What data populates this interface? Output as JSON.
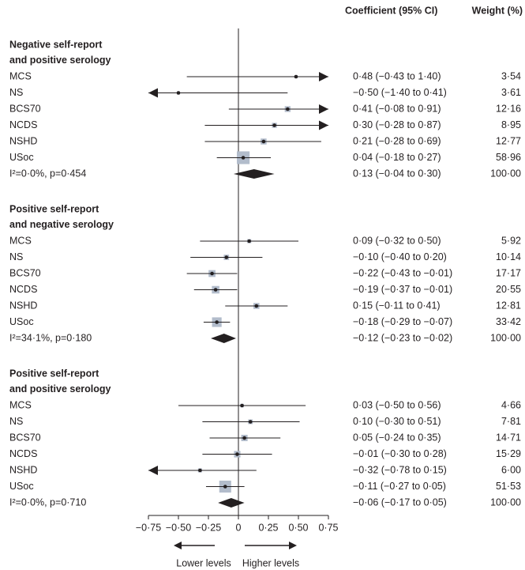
{
  "chart_data": {
    "type": "forest",
    "columns": [
      "Coefficient (95% CI)",
      "Weight (%)"
    ],
    "xlim": [
      -0.75,
      0.75
    ],
    "xticks": [
      {
        "value": -0.75,
        "label": "−0·75"
      },
      {
        "value": -0.5,
        "label": "−0·50"
      },
      {
        "value": -0.25,
        "label": "−0·25"
      },
      0,
      {
        "value": 0.25,
        "label": "0·25"
      },
      {
        "value": 0.5,
        "label": "0·50"
      },
      {
        "value": 0.75,
        "label": "0·75"
      }
    ],
    "direction_labels": [
      "Lower levels",
      "Higher levels"
    ],
    "box_color": "#b2bccb",
    "groups": [
      {
        "title": [
          "Negative self-report",
          "and positive serology"
        ],
        "rows": [
          {
            "label": "MCS",
            "estimate": 0.48,
            "lower": -0.43,
            "upper": 1.4,
            "ci_label": "0·48 (−0·43 to 1·40)",
            "weight": 3.54,
            "weight_label": "3·54"
          },
          {
            "label": "NS",
            "estimate": -0.5,
            "lower": -1.4,
            "upper": 0.41,
            "ci_label": "−0·50 (−1·40 to 0·41)",
            "weight": 3.61,
            "weight_label": "3·61"
          },
          {
            "label": "BCS70",
            "estimate": 0.41,
            "lower": -0.08,
            "upper": 0.91,
            "ci_label": "0·41 (−0·08 to 0·91)",
            "weight": 12.16,
            "weight_label": "12·16"
          },
          {
            "label": "NCDS",
            "estimate": 0.3,
            "lower": -0.28,
            "upper": 0.87,
            "ci_label": "0·30 (−0·28 to 0·87)",
            "weight": 8.95,
            "weight_label": "8·95"
          },
          {
            "label": "NSHD",
            "estimate": 0.21,
            "lower": -0.28,
            "upper": 0.69,
            "ci_label": "0·21 (−0·28 to 0·69)",
            "weight": 12.77,
            "weight_label": "12·77"
          },
          {
            "label": "USoc",
            "estimate": 0.04,
            "lower": -0.18,
            "upper": 0.27,
            "ci_label": "0·04 (−0·18 to 0·27)",
            "weight": 58.96,
            "weight_label": "58·96"
          }
        ],
        "summary": {
          "label": "I²=0·0%, p=0·454",
          "estimate": 0.13,
          "lower": -0.04,
          "upper": 0.3,
          "ci_label": "0·13 (−0·04 to 0·30)",
          "weight": 100,
          "weight_label": "100·00"
        }
      },
      {
        "title": [
          "Positive self-report",
          "and negative serology"
        ],
        "rows": [
          {
            "label": "MCS",
            "estimate": 0.09,
            "lower": -0.32,
            "upper": 0.5,
            "ci_label": "0·09 (−0·32 to 0·50)",
            "weight": 5.92,
            "weight_label": "5·92"
          },
          {
            "label": "NS",
            "estimate": -0.1,
            "lower": -0.4,
            "upper": 0.2,
            "ci_label": "−0·10 (−0·40 to 0·20)",
            "weight": 10.14,
            "weight_label": "10·14"
          },
          {
            "label": "BCS70",
            "estimate": -0.22,
            "lower": -0.43,
            "upper": -0.01,
            "ci_label": "−0·22 (−0·43 to −0·01)",
            "weight": 17.17,
            "weight_label": "17·17"
          },
          {
            "label": "NCDS",
            "estimate": -0.19,
            "lower": -0.37,
            "upper": -0.01,
            "ci_label": "−0·19 (−0·37 to −0·01)",
            "weight": 20.55,
            "weight_label": "20·55"
          },
          {
            "label": "NSHD",
            "estimate": 0.15,
            "lower": -0.11,
            "upper": 0.41,
            "ci_label": "0·15 (−0·11 to 0·41)",
            "weight": 12.81,
            "weight_label": "12·81"
          },
          {
            "label": "USoc",
            "estimate": -0.18,
            "lower": -0.29,
            "upper": -0.07,
            "ci_label": "−0·18 (−0·29 to −0·07)",
            "weight": 33.42,
            "weight_label": "33·42"
          }
        ],
        "summary": {
          "label": "I²=34·1%, p=0·180",
          "estimate": -0.12,
          "lower": -0.23,
          "upper": -0.02,
          "ci_label": "−0·12 (−0·23 to −0·02)",
          "weight": 100,
          "weight_label": "100·00"
        }
      },
      {
        "title": [
          "Positive self-report",
          "and positive serology"
        ],
        "rows": [
          {
            "label": "MCS",
            "estimate": 0.03,
            "lower": -0.5,
            "upper": 0.56,
            "ci_label": "0·03 (−0·50 to 0·56)",
            "weight": 4.66,
            "weight_label": "4·66"
          },
          {
            "label": "NS",
            "estimate": 0.1,
            "lower": -0.3,
            "upper": 0.51,
            "ci_label": "0·10 (−0·30 to 0·51)",
            "weight": 7.81,
            "weight_label": "7·81"
          },
          {
            "label": "BCS70",
            "estimate": 0.05,
            "lower": -0.24,
            "upper": 0.35,
            "ci_label": "0·05 (−0·24 to 0·35)",
            "weight": 14.71,
            "weight_label": "14·71"
          },
          {
            "label": "NCDS",
            "estimate": -0.01,
            "lower": -0.3,
            "upper": 0.28,
            "ci_label": "−0·01 (−0·30 to 0·28)",
            "weight": 15.29,
            "weight_label": "15·29"
          },
          {
            "label": "NSHD",
            "estimate": -0.32,
            "lower": -0.78,
            "upper": 0.15,
            "ci_label": "−0·32 (−0·78 to 0·15)",
            "weight": 6.0,
            "weight_label": "6·00"
          },
          {
            "label": "USoc",
            "estimate": -0.11,
            "lower": -0.27,
            "upper": 0.05,
            "ci_label": "−0·11 (−0·27 to 0·05)",
            "weight": 51.53,
            "weight_label": "51·53"
          }
        ],
        "summary": {
          "label": "I²=0·0%, p=0·710",
          "estimate": -0.06,
          "lower": -0.17,
          "upper": 0.05,
          "ci_label": "−0·06 (−0·17 to 0·05)",
          "weight": 100,
          "weight_label": "100·00"
        }
      }
    ]
  }
}
